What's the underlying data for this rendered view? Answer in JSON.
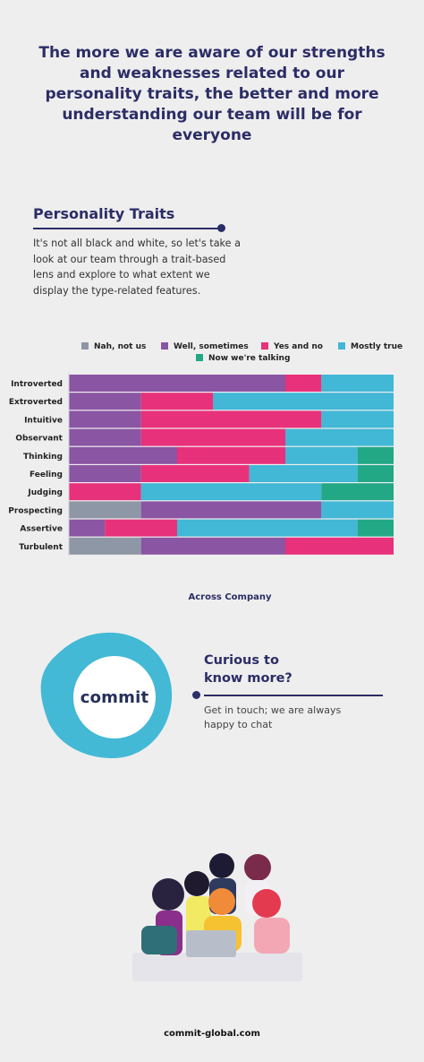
{
  "headline": "The more we are aware of our strengths and weaknesses related to our personality traits, the better and more understanding our team will be for everyone",
  "section": {
    "title": "Personality Traits",
    "description": "It's not all black and white, so let's take a look at our team through a trait-based lens and explore to what extent we display the type-related features."
  },
  "chart_data": {
    "type": "bar",
    "orientation": "horizontal",
    "stacked": true,
    "xlabel": "Across Company",
    "legend_position": "top",
    "categories": [
      "Introverted",
      "Extroverted",
      "Intuitive",
      "Observant",
      "Thinking",
      "Feeling",
      "Judging",
      "Prospecting",
      "Assertive",
      "Turbulent"
    ],
    "series": [
      {
        "name": "Nah, not us",
        "color": "#8e97a6",
        "values": [
          0,
          0,
          0,
          0,
          0,
          0,
          0,
          20,
          0,
          20
        ]
      },
      {
        "name": "Well, sometimes",
        "color": "#8a55a3",
        "values": [
          60,
          20,
          20,
          20,
          30,
          20,
          0,
          50,
          10,
          40
        ]
      },
      {
        "name": "Yes and no",
        "color": "#e8317b",
        "values": [
          10,
          20,
          50,
          40,
          30,
          30,
          20,
          0,
          20,
          30
        ]
      },
      {
        "name": "Mostly true",
        "color": "#42b7d6",
        "values": [
          20,
          50,
          20,
          30,
          20,
          30,
          50,
          20,
          50,
          0
        ]
      },
      {
        "name": "Now we're talking",
        "color": "#23a886",
        "values": [
          0,
          0,
          0,
          0,
          10,
          10,
          20,
          0,
          10,
          0
        ]
      }
    ]
  },
  "cta": {
    "logo": "commit",
    "title": "Curious to know more?",
    "description": "Get in touch; we are always happy to chat"
  },
  "footer": "commit-global.com",
  "colors": {
    "navy": "#2b2d66",
    "blob": "#43b9d6"
  }
}
